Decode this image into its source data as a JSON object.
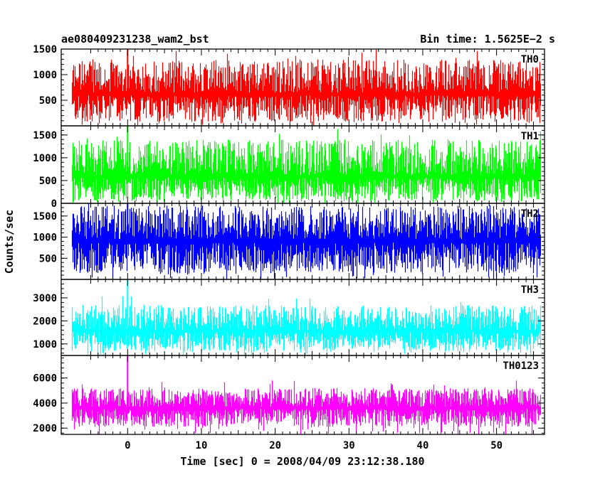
{
  "header": {
    "left_title": "ae080409231238_wam2_bst",
    "right_title": "Bin time: 1.5625E−2 s"
  },
  "chart_data": {
    "type": "line",
    "title": "ae080409231238_wam2_bst",
    "subtitle": "Bin time: 1.5625E−2 s",
    "xlabel": "Time [sec] 0 = 2008/04/09 23:12:38.180",
    "ylabel": "Counts/sec",
    "xlim": [
      -9,
      56.5
    ],
    "data_x_range": [
      -7.5,
      56
    ],
    "x_ticks": [
      0,
      10,
      20,
      30,
      40,
      50
    ],
    "x_tick_labels": [
      "0",
      "10",
      "20",
      "30",
      "40",
      "50"
    ],
    "grid": false,
    "panels": [
      {
        "name": "TH0",
        "color": "#ff0000",
        "ylim": [
          0,
          1500
        ],
        "y_ticks": [
          500,
          1000,
          1500
        ],
        "y_tick_labels": [
          "500",
          "1000",
          "1500"
        ],
        "mean": 650,
        "typical_range": [
          80,
          1300
        ],
        "max_excursion": 1500,
        "burst_peak": {
          "x": 0,
          "y": 1500
        }
      },
      {
        "name": "TH1",
        "color": "#00ff00",
        "ylim": [
          0,
          1700
        ],
        "y_ticks": [
          0,
          500,
          1000,
          1500
        ],
        "y_tick_labels": [
          "0",
          "500",
          "1000",
          "1500"
        ],
        "mean": 620,
        "typical_range": [
          60,
          1400
        ],
        "max_excursion": 1650,
        "burst_peak": {
          "x": 0,
          "y": 1700
        }
      },
      {
        "name": "TH2",
        "color": "#0000ff",
        "ylim": [
          0,
          1800
        ],
        "y_ticks": [
          500,
          1000,
          1500
        ],
        "y_tick_labels": [
          "500",
          "1000",
          "1500"
        ],
        "mean": 950,
        "typical_range": [
          150,
          1750
        ],
        "max_excursion": 1800,
        "burst_peak": {
          "x": 0,
          "y": 1800
        }
      },
      {
        "name": "TH3",
        "color": "#00ffff",
        "ylim": [
          500,
          3800
        ],
        "y_ticks": [
          1000,
          2000,
          3000
        ],
        "y_tick_labels": [
          "1000",
          "2000",
          "3000"
        ],
        "mean": 1600,
        "typical_range": [
          700,
          2700
        ],
        "max_excursion": 3100,
        "burst_peak": {
          "x": 0,
          "y": 3800
        }
      },
      {
        "name": "TH0123",
        "color": "#ff00ff",
        "ylim": [
          1500,
          7800
        ],
        "y_ticks": [
          2000,
          4000,
          6000
        ],
        "y_tick_labels": [
          "2000",
          "4000",
          "6000"
        ],
        "mean": 3700,
        "typical_range": [
          2100,
          5200
        ],
        "max_excursion": 5800,
        "burst_peak": {
          "x": 0,
          "y": 7800
        }
      }
    ]
  }
}
